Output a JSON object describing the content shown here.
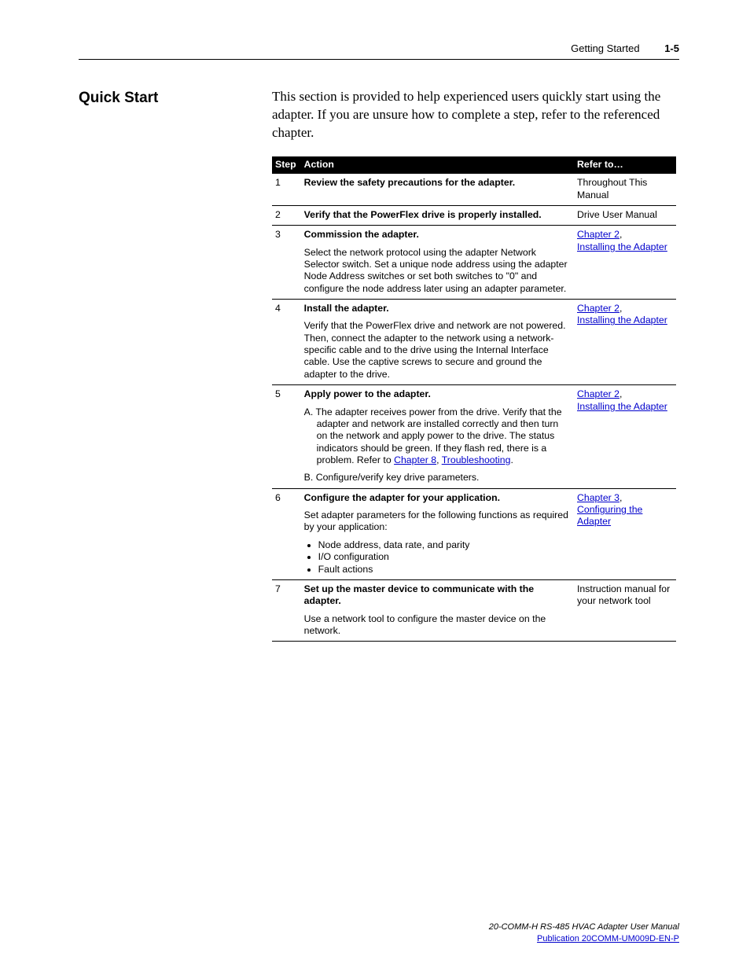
{
  "header": {
    "breadcrumb": "Getting Started",
    "page_number": "1-5"
  },
  "section": {
    "title": "Quick Start",
    "intro": "This section is provided to help experienced users quickly start using the adapter. If you are unsure how to complete a step, refer to the referenced chapter."
  },
  "table": {
    "columns": {
      "step": "Step",
      "action": "Action",
      "refer": "Refer to…"
    },
    "rows": [
      {
        "step": "1",
        "action_bold": "Review the safety precautions for the adapter.",
        "refer_text": "Throughout This Manual"
      },
      {
        "step": "2",
        "action_bold": "Verify that the PowerFlex drive is properly installed.",
        "refer_text": "Drive User Manual"
      },
      {
        "step": "3",
        "action_bold": "Commission the adapter.",
        "action_desc": "Select the network protocol using the adapter Network Selector switch. Set a unique node address using the adapter Node Address switches or set both switches to \"0\" and configure the node address later using an adapter parameter.",
        "refer_link1": "Chapter 2",
        "refer_sep": ", ",
        "refer_link2": "Installing the Adapter"
      },
      {
        "step": "4",
        "action_bold": "Install the adapter.",
        "action_desc": "Verify that the PowerFlex drive and network are not powered. Then, connect the adapter to the network using a network-specific cable and to the drive using the Internal Interface cable. Use the captive screws to secure and ground the adapter to the drive.",
        "refer_link1": "Chapter 2",
        "refer_sep": ", ",
        "refer_link2": "Installing the Adapter"
      },
      {
        "step": "5",
        "action_bold": "Apply power to the adapter.",
        "item_a_prefix": "A.  ",
        "item_a_text": "The adapter receives power from the drive. Verify that the adapter and network are installed correctly and then turn on the network and apply power to the drive. The status indicators should be green. If they flash red, there is a problem. Refer to ",
        "item_a_link1": "Chapter 8",
        "item_a_sep": ", ",
        "item_a_link2": "Troubleshooting",
        "item_a_suffix": ".",
        "item_b_prefix": "B.  ",
        "item_b_text": "Configure/verify key drive parameters.",
        "refer_link1": "Chapter 2",
        "refer_sep": ", ",
        "refer_link2": "Installing the Adapter"
      },
      {
        "step": "6",
        "action_bold": "Configure the adapter for your application.",
        "action_desc": "Set adapter parameters for the following functions as required by your application:",
        "bullets": [
          "Node address, data rate, and parity",
          "I/O configuration",
          "Fault actions"
        ],
        "refer_link1": "Chapter 3",
        "refer_sep": ", ",
        "refer_link2": "Configuring the Adapter"
      },
      {
        "step": "7",
        "action_bold": "Set up the master device to communicate with the adapter.",
        "action_desc": "Use a network tool to configure the master device on the network.",
        "refer_text": "Instruction manual for your network tool"
      }
    ]
  },
  "footer": {
    "manual_title": "20-COMM-H RS-485 HVAC Adapter User Manual",
    "publication": "Publication 20COMM-UM009D-EN-P"
  }
}
